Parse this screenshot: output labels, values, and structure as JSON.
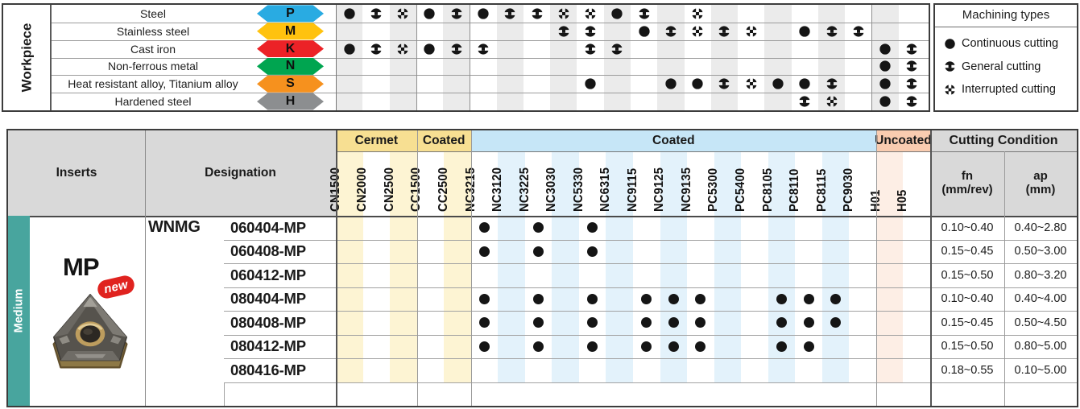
{
  "top_table": {
    "row_header": "Workpiece",
    "materials": [
      {
        "name": "Steel",
        "letter": "P",
        "color": "#29abe2"
      },
      {
        "name": "Stainless steel",
        "letter": "M",
        "color": "#ffc20e"
      },
      {
        "name": "Cast iron",
        "letter": "K",
        "color": "#ec2227"
      },
      {
        "name": "Non-ferrous metal",
        "letter": "N",
        "color": "#00a550"
      },
      {
        "name": "Heat resistant alloy, Titanium alloy",
        "letter": "S",
        "color": "#f6911e"
      },
      {
        "name": "Hardened steel",
        "letter": "H",
        "color": "#8c8e90"
      }
    ],
    "machining_marks": [
      {
        "material": "Steel",
        "marks": [
          [
            0,
            "C"
          ],
          [
            1,
            "G"
          ],
          [
            2,
            "I"
          ],
          [
            3,
            "C"
          ],
          [
            4,
            "G"
          ],
          [
            5,
            "C"
          ],
          [
            6,
            "G"
          ],
          [
            7,
            "G"
          ],
          [
            8,
            "I"
          ],
          [
            9,
            "I"
          ],
          [
            10,
            "C"
          ],
          [
            11,
            "G"
          ],
          [
            13,
            "I"
          ]
        ]
      },
      {
        "material": "Stainless steel",
        "marks": [
          [
            8,
            "G"
          ],
          [
            9,
            "G"
          ],
          [
            11,
            "C"
          ],
          [
            12,
            "G"
          ],
          [
            13,
            "I"
          ],
          [
            14,
            "G"
          ],
          [
            15,
            "I"
          ],
          [
            17,
            "C"
          ],
          [
            18,
            "G"
          ],
          [
            19,
            "G"
          ]
        ]
      },
      {
        "material": "Cast iron",
        "marks": [
          [
            0,
            "C"
          ],
          [
            1,
            "G"
          ],
          [
            2,
            "I"
          ],
          [
            3,
            "C"
          ],
          [
            4,
            "G"
          ],
          [
            5,
            "G"
          ],
          [
            9,
            "G"
          ],
          [
            10,
            "G"
          ],
          [
            20,
            "C"
          ],
          [
            21,
            "G"
          ]
        ]
      },
      {
        "material": "Non-ferrous metal",
        "marks": [
          [
            20,
            "C"
          ],
          [
            21,
            "G"
          ]
        ]
      },
      {
        "material": "Heat resistant alloy, Titanium alloy",
        "marks": [
          [
            9,
            "C"
          ],
          [
            12,
            "C"
          ],
          [
            13,
            "C"
          ],
          [
            14,
            "G"
          ],
          [
            15,
            "I"
          ],
          [
            16,
            "C"
          ],
          [
            17,
            "C"
          ],
          [
            18,
            "G"
          ],
          [
            20,
            "C"
          ],
          [
            21,
            "G"
          ]
        ]
      },
      {
        "material": "Hardened steel",
        "marks": [
          [
            17,
            "G"
          ],
          [
            18,
            "I"
          ],
          [
            20,
            "C"
          ],
          [
            21,
            "G"
          ]
        ]
      }
    ]
  },
  "legend": {
    "title": "Machining types",
    "items": [
      {
        "symbol": "continuous",
        "label": "Continuous cutting"
      },
      {
        "symbol": "general",
        "label": "General cutting"
      },
      {
        "symbol": "interrupted",
        "label": "Interrupted cutting"
      }
    ]
  },
  "grade_columns": {
    "groups": [
      {
        "label": "Cermet",
        "cols": 3,
        "style": "amber"
      },
      {
        "label": "Coated",
        "cols": 2,
        "style": "amber"
      },
      {
        "label": "Coated",
        "cols": 15,
        "style": "blue"
      },
      {
        "label": "Uncoated",
        "cols": 2,
        "style": "pink"
      }
    ],
    "names": [
      "CN1500",
      "CN2000",
      "CN2500",
      "CC1500",
      "CC2500",
      "NC3215",
      "NC3120",
      "NC3225",
      "NC3030",
      "NC5330",
      "NC6315",
      "NC9115",
      "NC9125",
      "NC9135",
      "PC5300",
      "PC5400",
      "PC8105",
      "PC8110",
      "PC8115",
      "PC9030",
      "H01",
      "H05"
    ]
  },
  "bottom_table": {
    "inserts_header": "Inserts",
    "designation_header": "Designation",
    "cutting_condition": {
      "group_label": "Cutting Condition",
      "columns": [
        {
          "line1": "fn",
          "line2": "(mm/rev)"
        },
        {
          "line1": "ap",
          "line2": "(mm)"
        }
      ]
    },
    "size_class": "Medium",
    "insert_name": "MP",
    "badge": "new",
    "series": "WNMG",
    "rows": [
      {
        "code": "060404-MP",
        "dots": [
          5,
          7,
          9
        ],
        "fn": "0.10~0.40",
        "ap": "0.40~2.80"
      },
      {
        "code": "060408-MP",
        "dots": [
          5,
          7,
          9
        ],
        "fn": "0.15~0.45",
        "ap": "0.50~3.00"
      },
      {
        "code": "060412-MP",
        "dots": [],
        "fn": "0.15~0.50",
        "ap": "0.80~3.20"
      },
      {
        "code": "080404-MP",
        "dots": [
          5,
          7,
          9,
          11,
          12,
          13,
          16,
          17,
          18
        ],
        "fn": "0.10~0.40",
        "ap": "0.40~4.00"
      },
      {
        "code": "080408-MP",
        "dots": [
          5,
          7,
          9,
          11,
          12,
          13,
          16,
          17,
          18
        ],
        "fn": "0.15~0.45",
        "ap": "0.50~4.50"
      },
      {
        "code": "080412-MP",
        "dots": [
          5,
          7,
          9,
          11,
          12,
          13,
          16,
          17
        ],
        "fn": "0.15~0.50",
        "ap": "0.80~5.00"
      },
      {
        "code": "080416-MP",
        "dots": [],
        "fn": "0.18~0.55",
        "ap": "0.10~5.00"
      },
      {
        "code": "",
        "dots": [],
        "fn": "",
        "ap": ""
      }
    ]
  },
  "colors": {
    "stripe_gray": "#ebebeb",
    "stripe_amber": "#fdf4d3",
    "stripe_blue": "#e3f2fb",
    "stripe_pink": "#fdeee5",
    "header_amber": "#f7df92",
    "header_blue": "#c6e6f7",
    "header_pink": "#f9ccb0",
    "header_gray": "#d9d9d9",
    "teal": "#48a59e",
    "badge_red": "#e0231f",
    "mark": "#151515"
  }
}
